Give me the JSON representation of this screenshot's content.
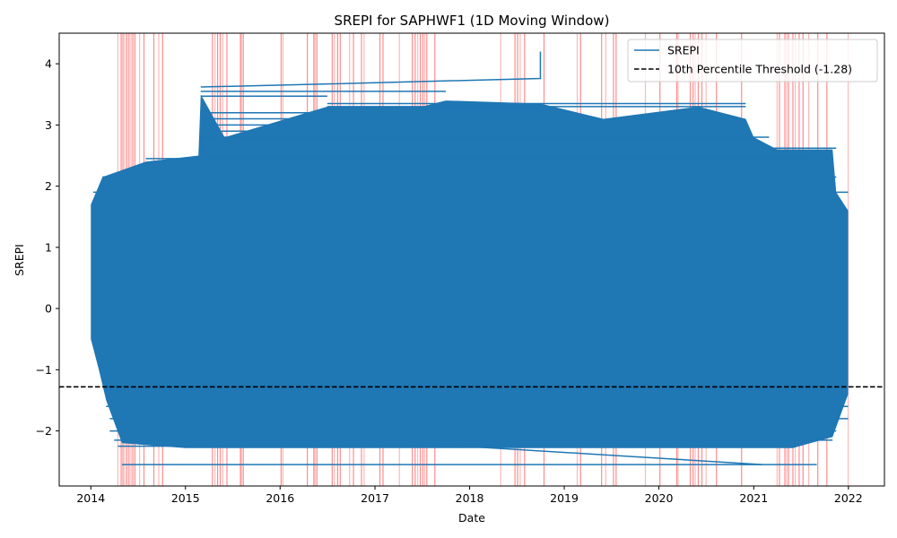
{
  "chart_data": {
    "type": "line",
    "title": "SREPI for SAPHWF1 (1D Moving Window)",
    "xlabel": "Date",
    "ylabel": "SREPI",
    "xlim": [
      "2013-09-01",
      "2022-05-20"
    ],
    "ylim": [
      -2.9,
      4.5
    ],
    "x_ticks": [
      "2014",
      "2015",
      "2016",
      "2017",
      "2018",
      "2019",
      "2020",
      "2021",
      "2022"
    ],
    "y_ticks": [
      "−2",
      "−1",
      "0",
      "1",
      "2",
      "3",
      "4"
    ],
    "y_tick_values": [
      -2,
      -1,
      0,
      1,
      2,
      3,
      4
    ],
    "series": [
      {
        "name": "SREPI",
        "color": "#1f77b4",
        "dense_band": {
          "x_start": "2014-01-01",
          "x_end": "2021-12-31",
          "y_min": -2.28,
          "y_max": 2.6
        },
        "envelope_upper": [
          [
            "2014-01-01",
            1.7
          ],
          [
            "2014-02-15",
            2.15
          ],
          [
            "2014-08-01",
            2.4
          ],
          [
            "2015-02-20",
            2.5
          ],
          [
            "2015-03-01",
            3.5
          ],
          [
            "2015-06-01",
            2.8
          ],
          [
            "2016-07-01",
            3.3
          ],
          [
            "2017-07-01",
            3.3
          ],
          [
            "2017-10-01",
            3.4
          ],
          [
            "2018-10-01",
            3.35
          ],
          [
            "2019-06-01",
            3.1
          ],
          [
            "2020-06-01",
            3.3
          ],
          [
            "2020-12-01",
            3.1
          ],
          [
            "2021-01-01",
            2.8
          ],
          [
            "2021-04-01",
            2.6
          ],
          [
            "2021-11-01",
            2.6
          ],
          [
            "2021-11-15",
            1.9
          ],
          [
            "2021-12-31",
            1.6
          ]
        ],
        "envelope_lower": [
          [
            "2014-01-01",
            -0.5
          ],
          [
            "2014-02-01",
            -1.0
          ],
          [
            "2014-03-01",
            -1.5
          ],
          [
            "2014-05-01",
            -2.2
          ],
          [
            "2015-01-01",
            -2.28
          ],
          [
            "2021-06-01",
            -2.28
          ],
          [
            "2021-11-01",
            -2.1
          ],
          [
            "2021-12-31",
            -1.4
          ]
        ],
        "outlier_segments": [
          [
            [
              "2015-03-01",
              3.62
            ],
            [
              "2016-07-01",
              3.67
            ],
            [
              "2018-10-01",
              3.76
            ],
            [
              "2018-10-01",
              4.2
            ]
          ],
          [
            [
              "2014-05-01",
              -2.55
            ],
            [
              "2018-01-01",
              -2.55
            ],
            [
              "2021-09-01",
              -2.55
            ]
          ],
          [
            [
              "2017-06-01",
              -2.2
            ],
            [
              "2021-02-01",
              -2.55
            ]
          ],
          [
            [
              "2015-03-01",
              3.55
            ],
            [
              "2017-10-01",
              3.55
            ]
          ]
        ],
        "horizontal_lines": [
          [
            3.47,
            "2015-03-01",
            "2016-07-01"
          ],
          [
            3.35,
            "2016-07-01",
            "2020-12-01"
          ],
          [
            3.3,
            "2016-07-01",
            "2020-12-01"
          ],
          [
            3.2,
            "2015-03-01",
            "2017-10-01"
          ],
          [
            3.1,
            "2015-03-01",
            "2017-10-01"
          ],
          [
            3.0,
            "2015-03-01",
            "2020-12-01"
          ],
          [
            2.9,
            "2015-03-01",
            "2017-10-01"
          ],
          [
            2.8,
            "2015-03-01",
            "2021-03-01"
          ],
          [
            2.62,
            "2016-01-01",
            "2021-11-15"
          ],
          [
            2.45,
            "2014-08-01",
            "2021-08-01"
          ],
          [
            2.15,
            "2014-02-15",
            "2021-11-15"
          ],
          [
            1.9,
            "2014-01-10",
            "2021-12-31"
          ],
          [
            -1.6,
            "2014-03-01",
            "2021-12-31"
          ],
          [
            -1.8,
            "2014-03-15",
            "2021-12-31"
          ],
          [
            -2.0,
            "2014-03-15",
            "2021-11-15"
          ],
          [
            -2.15,
            "2014-04-01",
            "2021-11-01"
          ],
          [
            -2.25,
            "2014-04-15",
            "2021-06-01"
          ]
        ]
      },
      {
        "name": "10th Percentile Threshold (-1.28)",
        "color": "#000000",
        "style": "dashed",
        "y": -1.28
      }
    ],
    "highlight_color": "#ff0000",
    "highlight_dates": [
      "2014-04-15",
      "2014-04-28",
      "2014-05-05",
      "2014-05-12",
      "2014-05-20",
      "2014-05-28",
      "2014-06-05",
      "2014-06-12",
      "2014-06-20",
      "2014-07-08",
      "2014-07-25",
      "2014-09-01",
      "2014-09-20",
      "2014-10-05",
      "2015-04-15",
      "2015-04-25",
      "2015-05-05",
      "2015-05-15",
      "2015-05-25",
      "2015-06-10",
      "2015-08-01",
      "2015-08-05",
      "2015-08-12",
      "2016-01-05",
      "2016-01-12",
      "2016-04-15",
      "2016-05-10",
      "2016-05-15",
      "2016-05-22",
      "2016-07-20",
      "2016-07-28",
      "2016-08-10",
      "2016-08-20",
      "2016-09-25",
      "2016-10-10",
      "2016-11-10",
      "2016-11-20",
      "2017-01-20",
      "2017-02-01",
      "2017-04-05",
      "2017-05-25",
      "2017-06-05",
      "2017-06-15",
      "2017-06-25",
      "2017-07-05",
      "2017-07-12",
      "2017-07-20",
      "2017-08-20",
      "2018-05-01",
      "2018-06-25",
      "2018-07-05",
      "2018-07-15",
      "2018-08-01",
      "2018-10-15",
      "2019-02-20",
      "2019-03-05",
      "2019-05-25",
      "2019-06-10",
      "2019-07-10",
      "2019-07-20",
      "2019-11-10",
      "2020-01-05",
      "2020-03-10",
      "2020-03-15",
      "2020-05-01",
      "2020-05-12",
      "2020-05-20",
      "2020-06-01",
      "2020-06-15",
      "2020-07-01",
      "2020-08-10",
      "2020-11-15",
      "2021-04-01",
      "2021-04-10",
      "2021-05-01",
      "2021-05-08",
      "2021-05-15",
      "2021-06-01",
      "2021-06-10",
      "2021-06-25",
      "2021-07-10",
      "2021-08-01",
      "2021-09-05",
      "2021-10-10",
      "2021-12-31"
    ],
    "legend": {
      "position": "top-right",
      "entries": [
        "SREPI",
        "10th Percentile Threshold (-1.28)"
      ]
    },
    "grid": false
  }
}
